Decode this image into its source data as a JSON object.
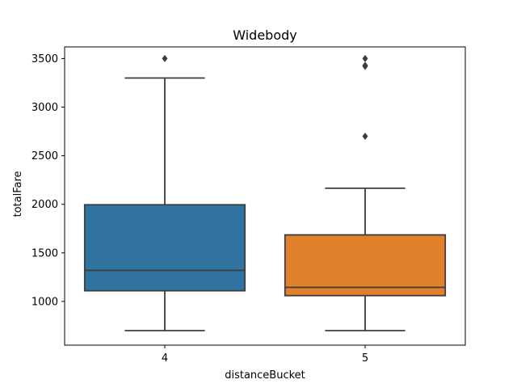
{
  "chart_data": {
    "type": "box",
    "title": "Widebody",
    "xlabel": "distanceBucket",
    "ylabel": "totalFare",
    "categories": [
      "4",
      "5"
    ],
    "colors": [
      "#3274a1",
      "#e1812c"
    ],
    "median_color": "#3d3d3d",
    "ylim": [
      550,
      3620
    ],
    "yticks": [
      1000,
      1500,
      2000,
      2500,
      3000,
      3500
    ],
    "boxes": [
      {
        "category": "4",
        "whisker_low": 700,
        "q1": 1110,
        "median": 1320,
        "q3": 1995,
        "whisker_high": 3300,
        "outliers": [
          3500
        ]
      },
      {
        "category": "5",
        "whisker_low": 700,
        "q1": 1060,
        "median": 1145,
        "q3": 1685,
        "whisker_high": 2165,
        "outliers": [
          2700,
          3420,
          3430,
          3500
        ]
      }
    ]
  }
}
